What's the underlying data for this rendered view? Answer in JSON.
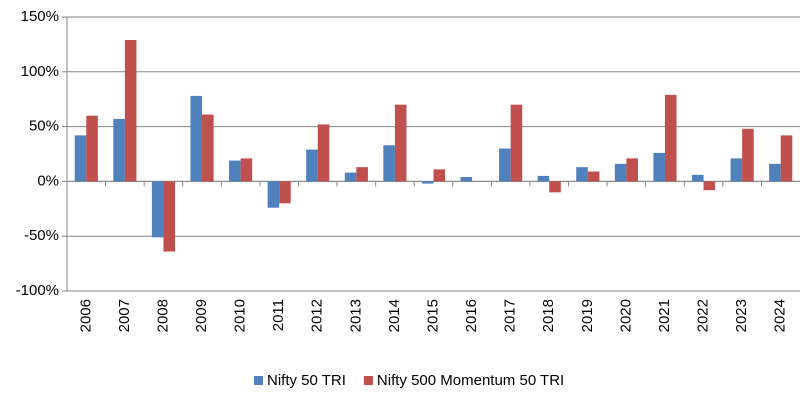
{
  "chart_data": {
    "type": "bar",
    "categories": [
      "2006",
      "2007",
      "2008",
      "2009",
      "2010",
      "2011",
      "2012",
      "2013",
      "2014",
      "2015",
      "2016",
      "2017",
      "2018",
      "2019",
      "2020",
      "2021",
      "2022",
      "2023",
      "2024"
    ],
    "series": [
      {
        "name": "Nifty 50 TRI",
        "color": "#4f81bd",
        "values": [
          42,
          57,
          -51,
          78,
          19,
          -24,
          29,
          8,
          33,
          -2,
          4,
          30,
          5,
          13,
          16,
          26,
          6,
          21,
          16
        ]
      },
      {
        "name": "Nifty 500 Momentum 50 TRI",
        "color": "#c0504d",
        "values": [
          60,
          129,
          -64,
          61,
          21,
          -20,
          52,
          13,
          70,
          11,
          0,
          70,
          -10,
          9,
          21,
          79,
          -8,
          48,
          42
        ]
      }
    ],
    "ylim": [
      -100,
      150
    ],
    "yticks": [
      {
        "value": -100,
        "label": "-100%"
      },
      {
        "value": -50,
        "label": "-50%"
      },
      {
        "value": 0,
        "label": "0%"
      },
      {
        "value": 50,
        "label": "50%"
      },
      {
        "value": 100,
        "label": "100%"
      },
      {
        "value": 150,
        "label": "150%"
      }
    ],
    "grid": true,
    "legend": "bottom"
  }
}
